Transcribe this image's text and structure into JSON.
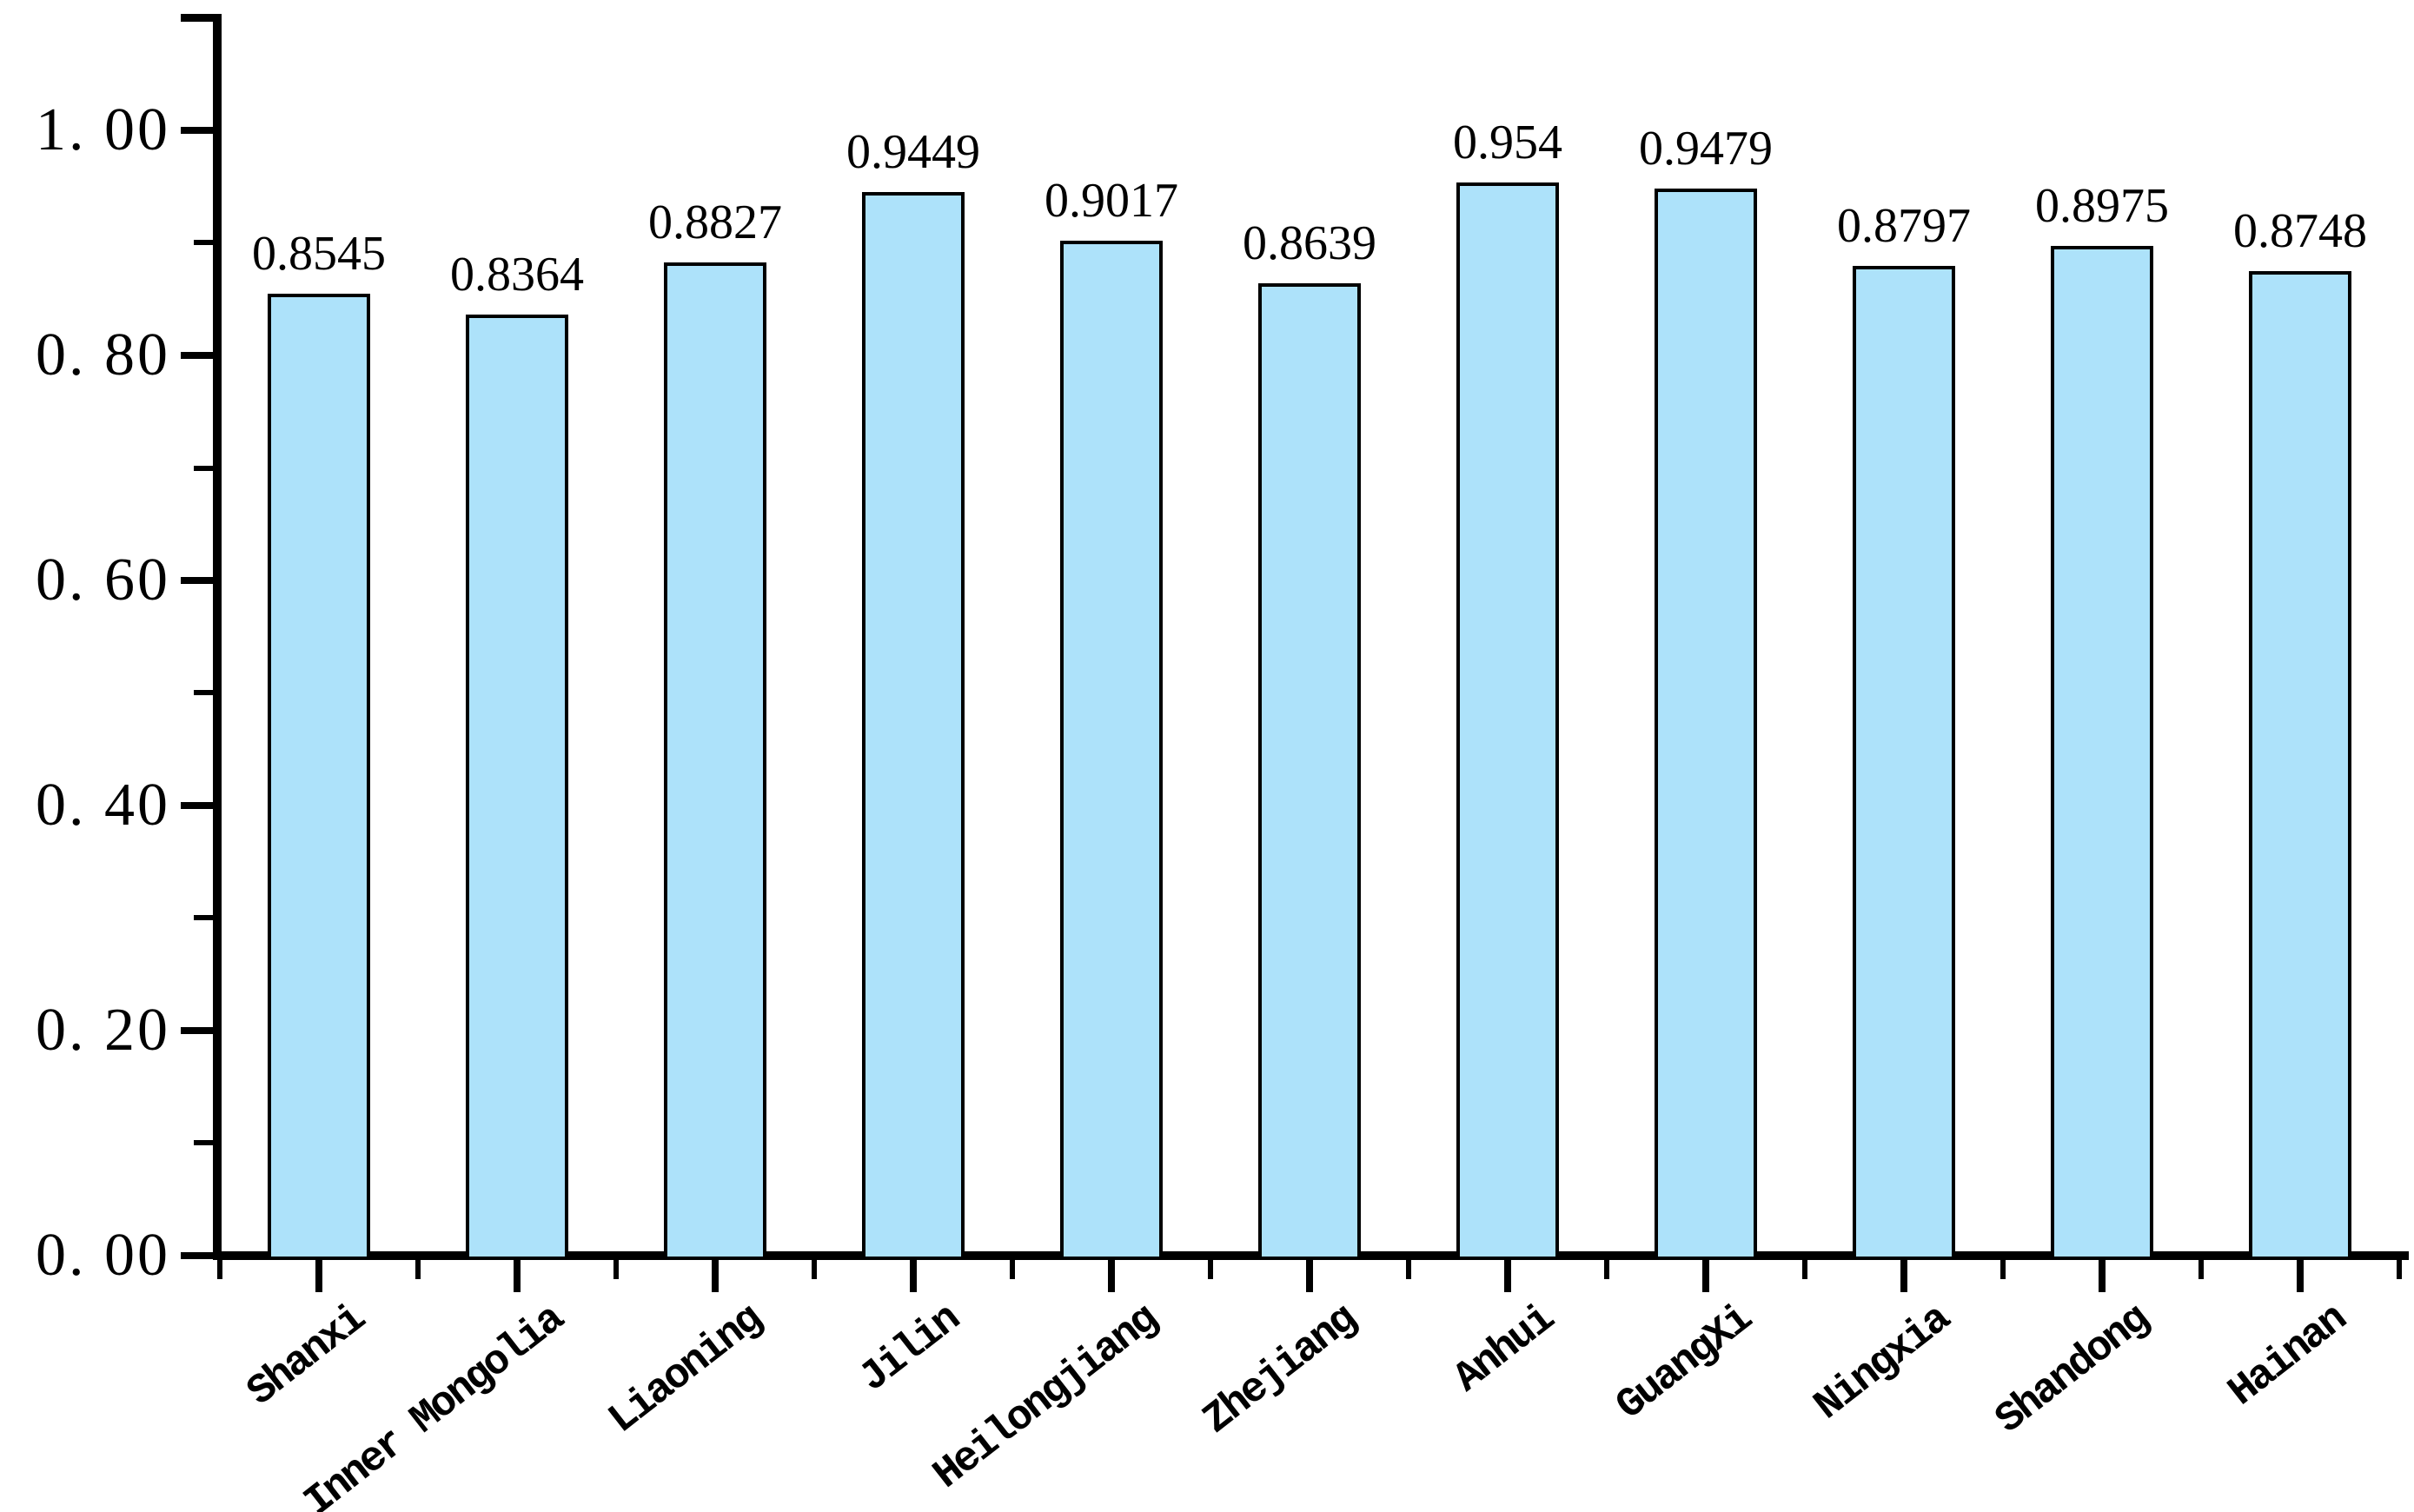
{
  "chart_data": {
    "type": "bar",
    "title": "",
    "xlabel": "",
    "ylabel": "",
    "categories": [
      "Shanxi",
      "Inner Mongolia",
      "Liaoning",
      "Jilin",
      "Heilongjiang",
      "Zhejiang",
      "Anhui",
      "GuangXi",
      "Ningxia",
      "Shandong",
      "Hainan"
    ],
    "values": [
      0.8545,
      0.8364,
      0.8827,
      0.9449,
      0.9017,
      0.8639,
      0.954,
      0.9479,
      0.8797,
      0.8975,
      0.8748
    ],
    "value_labels": [
      "0.8545",
      "0.8364",
      "0.8827",
      "0.9449",
      "0.9017",
      "0.8639",
      "0.954",
      "0.9479",
      "0.8797",
      "0.8975",
      "0.8748"
    ],
    "ylim": [
      0,
      1.1
    ],
    "y_major_ticks": [
      0.0,
      0.2,
      0.4,
      0.6,
      0.8,
      1.0
    ],
    "y_tick_labels": [
      "0. 00",
      "0. 20",
      "0. 40",
      "0. 60",
      "0. 80",
      "1. 00"
    ],
    "y_minor_ticks": [
      0.1,
      0.3,
      0.5,
      0.7,
      0.9
    ],
    "grid": false,
    "legend": false,
    "colors": {
      "bar_fill": "#ADE2FA",
      "bar_border": "#000000",
      "axis": "#000000",
      "text": "#000000",
      "background": "#FFFFFF"
    }
  }
}
